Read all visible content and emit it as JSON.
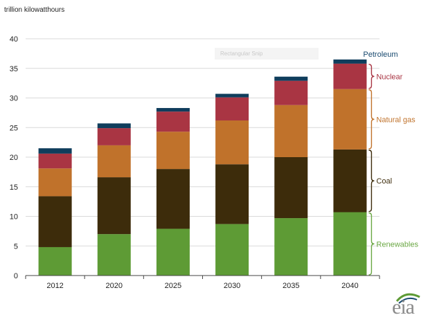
{
  "unit_label": "trillion kilowatthours",
  "screen_artifact": "Rectangular Snip",
  "logo": "eia",
  "chart_data": {
    "type": "bar",
    "stacked": true,
    "categories": [
      "2012",
      "2020",
      "2025",
      "2030",
      "2035",
      "2040"
    ],
    "series": [
      {
        "name": "Renewables",
        "color": "#5e9b35",
        "values": [
          4.8,
          7.0,
          7.9,
          8.7,
          9.7,
          10.7
        ]
      },
      {
        "name": "Coal",
        "color": "#3d2c0b",
        "values": [
          8.6,
          9.6,
          10.1,
          10.1,
          10.3,
          10.6
        ]
      },
      {
        "name": "Natural gas",
        "color": "#c0722b",
        "values": [
          4.7,
          5.4,
          6.3,
          7.4,
          8.8,
          10.2
        ]
      },
      {
        "name": "Nuclear",
        "color": "#a93543",
        "values": [
          2.5,
          2.9,
          3.4,
          3.9,
          4.1,
          4.3
        ]
      },
      {
        "name": "Petroleum",
        "color": "#0f3d5c",
        "values": [
          0.9,
          0.8,
          0.6,
          0.6,
          0.7,
          0.7
        ]
      }
    ],
    "legend_colors": {
      "Renewables": "#6aa743",
      "Coal": "#3d2c0b",
      "Natural gas": "#c0722b",
      "Nuclear": "#a93543",
      "Petroleum": "#17486e"
    },
    "ylim": [
      0,
      40
    ],
    "yticks": [
      "0",
      "5",
      "10",
      "15",
      "20",
      "25",
      "30",
      "35",
      "40"
    ],
    "grid": true,
    "legend": "right, bracketed labels beside the 2040 bar"
  }
}
